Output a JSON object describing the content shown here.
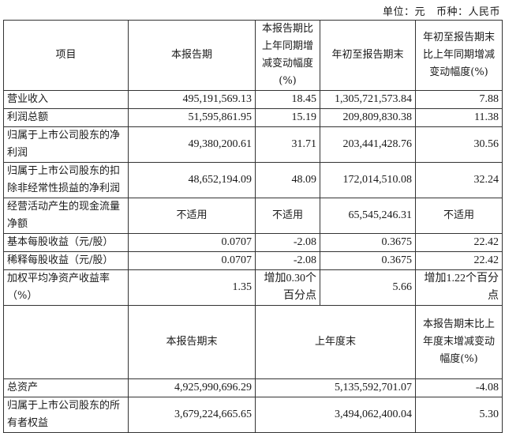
{
  "unit_label": "单位：元",
  "currency_label": "币种：人民币",
  "header": [
    "项目",
    "本报告期",
    "本报告期比上年同期增减变动幅度(%)",
    "年初至报告期末",
    "年初至报告期末比上年同期增减变动幅度(%)"
  ],
  "rows": [
    {
      "item": "营业收入",
      "current": "495,191,569.13",
      "change": "18.45",
      "ytd": "1,305,721,573.84",
      "ytd_change": "7.88"
    },
    {
      "item": "利润总额",
      "current": "51,595,861.95",
      "change": "15.19",
      "ytd": "209,809,830.38",
      "ytd_change": "11.38"
    },
    {
      "item": "归属于上市公司股东的净利润",
      "current": "49,380,200.61",
      "change": "31.71",
      "ytd": "203,441,428.76",
      "ytd_change": "30.56"
    },
    {
      "item": "归属于上市公司股东的扣除非经常性损益的净利润",
      "current": "48,652,194.09",
      "change": "48.09",
      "ytd": "172,014,510.08",
      "ytd_change": "32.24"
    },
    {
      "item": "经营活动产生的现金流量净额",
      "current": "不适用",
      "change": "不适用",
      "ytd": "65,545,246.31",
      "ytd_change": "不适用"
    },
    {
      "item": "基本每股收益（元/股）",
      "current": "0.0707",
      "change": "-2.08",
      "ytd": "0.3675",
      "ytd_change": "22.42"
    },
    {
      "item": "稀释每股收益（元/股）",
      "current": "0.0707",
      "change": "-2.08",
      "ytd": "0.3675",
      "ytd_change": "22.42"
    },
    {
      "item": "加权平均净资产收益率（%）",
      "current": "1.35",
      "change": "增加0.30个百分点",
      "ytd": "5.66",
      "ytd_change": "增加1.22个百分点"
    }
  ],
  "header2": [
    "",
    "本报告期末",
    "上年度末",
    "本报告期末比上年度末增减变动幅度(%)"
  ],
  "rows2": [
    {
      "item": "总资产",
      "current": "4,925,990,696.29",
      "prior": "5,135,592,701.07",
      "change": "-4.08"
    },
    {
      "item": "归属于上市公司股东的所有者权益",
      "current": "3,679,224,665.65",
      "prior": "3,494,062,400.04",
      "change": "5.30"
    }
  ]
}
